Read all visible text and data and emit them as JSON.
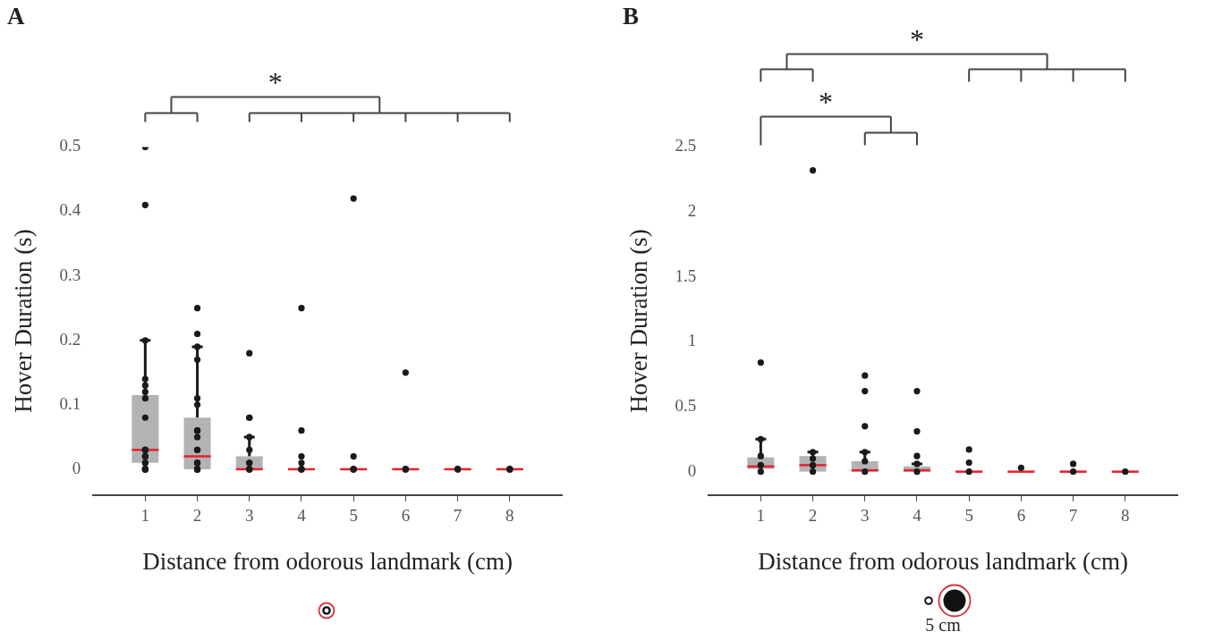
{
  "chart_data": [
    {
      "type": "box",
      "title": "A",
      "xlabel": "Distance from odorous landmark (cm)",
      "ylabel": "Hover Duration (s)",
      "categories": [
        "1",
        "2",
        "3",
        "4",
        "5",
        "6",
        "7",
        "8"
      ],
      "ylim": [
        -0.04,
        0.5
      ],
      "yticks": [
        0,
        0.1,
        0.2,
        0.3,
        0.4,
        0.5
      ],
      "grid": false,
      "legend": false,
      "series": [
        {
          "type": "box",
          "color": "#b3b3b3",
          "boxes": [
            {
              "low": 0.01,
              "q1": 0.01,
              "median": 0.03,
              "q3": 0.115,
              "high": 0.2
            },
            {
              "low": 0,
              "q1": 0,
              "median": 0.02,
              "q3": 0.08,
              "high": 0.19
            },
            {
              "low": 0,
              "q1": 0,
              "median": 0,
              "q3": 0.02,
              "high": 0.05
            },
            {
              "low": 0,
              "q1": 0,
              "median": 0,
              "q3": 0,
              "high": 0
            },
            {
              "low": 0,
              "q1": 0,
              "median": 0,
              "q3": 0,
              "high": 0
            },
            {
              "low": 0,
              "q1": 0,
              "median": 0,
              "q3": 0,
              "high": 0
            },
            {
              "low": 0,
              "q1": 0,
              "median": 0,
              "q3": 0,
              "high": 0
            },
            {
              "low": 0,
              "q1": 0,
              "median": 0,
              "q3": 0,
              "high": 0
            }
          ]
        },
        {
          "type": "scatter",
          "color": "#1a1a1a",
          "marker": "circle",
          "x": [
            "1",
            "1",
            "1",
            "1",
            "1",
            "1",
            "1",
            "1",
            "1",
            "1",
            "1",
            "1",
            "1",
            "1",
            "1",
            "1",
            "1",
            "1",
            "1",
            "1",
            "1",
            "2",
            "2",
            "2",
            "2",
            "2",
            "2",
            "2",
            "2",
            "2",
            "2",
            "2",
            "2",
            "2",
            "2",
            "2",
            "2",
            "2",
            "2",
            "2",
            "2",
            "3",
            "3",
            "3",
            "3",
            "3",
            "3",
            "3",
            "3",
            "3",
            "3",
            "4",
            "4",
            "4",
            "4",
            "4",
            "4",
            "4",
            "5",
            "5",
            "5",
            "5",
            "5",
            "6",
            "6",
            "6",
            "6",
            "7",
            "7",
            "7",
            "8",
            "8",
            "8"
          ],
          "values": [
            0.5,
            0.41,
            0.2,
            0.14,
            0.13,
            0.12,
            0.11,
            0.08,
            0.03,
            0.03,
            0.03,
            0.03,
            0.02,
            0.02,
            0.02,
            0.01,
            0.01,
            0,
            0,
            0,
            0,
            0.25,
            0.21,
            0.19,
            0.17,
            0.11,
            0.1,
            0.06,
            0.06,
            0.06,
            0.05,
            0.03,
            0.03,
            0.01,
            0.01,
            0.01,
            0,
            0,
            0,
            0,
            0,
            0.18,
            0.08,
            0.08,
            0.05,
            0.03,
            0.01,
            0.01,
            0,
            0,
            0,
            0.25,
            0.06,
            0.02,
            0.01,
            0,
            0,
            0,
            0.42,
            0.02,
            0,
            0,
            0,
            0.15,
            0,
            0,
            0,
            0,
            0,
            0,
            0,
            0,
            0
          ]
        }
      ],
      "annotations": [
        "*"
      ]
    },
    {
      "type": "box",
      "title": "B",
      "xlabel": "Distance from odorous landmark (cm)",
      "ylabel": "Hover Duration (s)",
      "categories": [
        "1",
        "2",
        "3",
        "4",
        "5",
        "6",
        "7",
        "8"
      ],
      "ylim": [
        -0.18,
        2.5
      ],
      "yticks": [
        0,
        0.5,
        1,
        1.5,
        2,
        2.5
      ],
      "grid": false,
      "legend": false,
      "series": [
        {
          "type": "box",
          "color": "#b3b3b3",
          "boxes": [
            {
              "low": 0.02,
              "q1": 0.02,
              "median": 0.04,
              "q3": 0.11,
              "high": 0.25
            },
            {
              "low": 0,
              "q1": 0,
              "median": 0.05,
              "q3": 0.12,
              "high": 0.15
            },
            {
              "low": 0,
              "q1": 0,
              "median": 0.01,
              "q3": 0.08,
              "high": 0.15
            },
            {
              "low": 0,
              "q1": 0,
              "median": 0.01,
              "q3": 0.04,
              "high": 0.06
            },
            {
              "low": 0,
              "q1": 0,
              "median": 0,
              "q3": 0,
              "high": 0
            },
            {
              "low": 0,
              "q1": 0,
              "median": 0,
              "q3": 0,
              "high": 0
            },
            {
              "low": 0,
              "q1": 0,
              "median": 0,
              "q3": 0,
              "high": 0
            },
            {
              "low": 0,
              "q1": 0,
              "median": 0,
              "q3": 0,
              "high": 0
            }
          ]
        },
        {
          "type": "scatter",
          "color": "#1a1a1a",
          "marker": "circle",
          "x": [
            "1",
            "1",
            "1",
            "1",
            "1",
            "2",
            "2",
            "2",
            "2",
            "2",
            "3",
            "3",
            "3",
            "3",
            "3",
            "3",
            "4",
            "4",
            "4",
            "4",
            "4",
            "5",
            "5",
            "5",
            "6",
            "7",
            "7",
            "8"
          ],
          "values": [
            0.84,
            0.25,
            0.12,
            0.05,
            0,
            2.32,
            0.15,
            0.1,
            0.05,
            0,
            0.74,
            0.62,
            0.35,
            0.15,
            0.08,
            0,
            0.62,
            0.31,
            0.12,
            0.06,
            0,
            0.17,
            0.07,
            0,
            0.03,
            0.06,
            0,
            0
          ]
        }
      ],
      "annotations": [
        "*",
        "*",
        "5 cm"
      ]
    }
  ]
}
